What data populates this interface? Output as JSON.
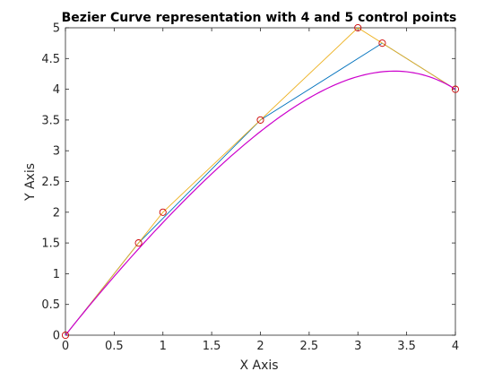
{
  "chart_data": {
    "type": "line",
    "title": "Bezier Curve representation with 4 and 5 control points",
    "xlabel": "X Axis",
    "ylabel": "Y Axis",
    "xlim": [
      0,
      4
    ],
    "ylim": [
      0,
      5
    ],
    "xticks": [
      0,
      0.5,
      1,
      1.5,
      2,
      2.5,
      3,
      3.5,
      4
    ],
    "xtick_labels": [
      "0",
      "0.5",
      "1",
      "1.5",
      "2",
      "2.5",
      "3",
      "3.5",
      "4"
    ],
    "yticks": [
      0,
      0.5,
      1,
      1.5,
      2,
      2.5,
      3,
      3.5,
      4,
      4.5,
      5
    ],
    "ytick_labels": [
      "0",
      "0.5",
      "1",
      "1.5",
      "2",
      "2.5",
      "3",
      "3.5",
      "4",
      "4.5",
      "5"
    ],
    "grid": false,
    "legend": "none",
    "series": [
      {
        "kind": "control-polygon",
        "color": "#0072BD",
        "points": [
          [
            0,
            0
          ],
          [
            0.75,
            1.5
          ],
          [
            2,
            3.5
          ],
          [
            3.25,
            4.75
          ],
          [
            4,
            4
          ]
        ]
      },
      {
        "kind": "control-polygon",
        "color": "#EDB120",
        "points": [
          [
            0,
            0
          ],
          [
            1,
            2
          ],
          [
            2,
            3.5
          ],
          [
            3,
            5
          ],
          [
            4,
            4
          ]
        ]
      },
      {
        "kind": "bezier-curve",
        "color": "#CC00CC",
        "control_points": [
          [
            0,
            0
          ],
          [
            1,
            2
          ],
          [
            2,
            3.5
          ],
          [
            3,
            5
          ],
          [
            4,
            4
          ]
        ]
      }
    ],
    "markers": {
      "shape": "circle",
      "color": "#CC0000",
      "points": [
        [
          0,
          0
        ],
        [
          0.75,
          1.5
        ],
        [
          1,
          2
        ],
        [
          2,
          3.5
        ],
        [
          3,
          5
        ],
        [
          3.25,
          4.75
        ],
        [
          4,
          4
        ]
      ]
    }
  }
}
